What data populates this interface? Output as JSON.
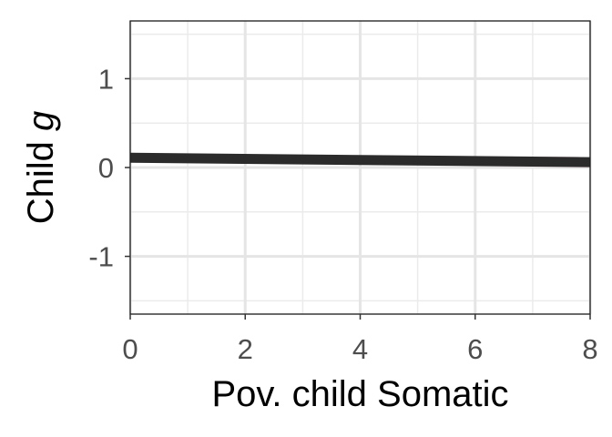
{
  "chart_data": {
    "type": "line",
    "xlabel": "Pov. child Somatic",
    "ylabel_main": "Child ",
    "ylabel_italic": "g",
    "xlim": [
      0,
      8
    ],
    "ylim": [
      -1.65,
      1.65
    ],
    "x_ticks": [
      0,
      2,
      4,
      6,
      8
    ],
    "x_tick_labels": [
      "0",
      "2",
      "4",
      "6",
      "8"
    ],
    "y_ticks": [
      -1,
      0,
      1
    ],
    "y_tick_labels": [
      "-1",
      "0",
      "1"
    ],
    "grid": true,
    "series": [
      {
        "x": [
          0,
          8
        ],
        "y": [
          0.11,
          0.06
        ],
        "ci_lower": [
          0.07,
          0.0
        ],
        "ci_upper": [
          0.15,
          0.12
        ],
        "line_color": "#2b2b2b",
        "ribbon_color": "#f3dde6"
      }
    ]
  }
}
